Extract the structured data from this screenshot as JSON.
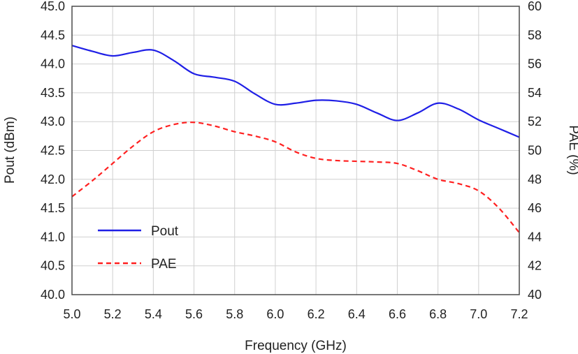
{
  "chart_data": {
    "type": "line",
    "x": [
      5.0,
      5.2,
      5.4,
      5.6,
      5.8,
      6.0,
      6.2,
      6.4,
      6.6,
      6.8,
      7.0,
      7.2
    ],
    "xlabel": "Frequency (GHz)",
    "ylabel": "Pout (dBm)",
    "y2label": "PAE (%)",
    "xlim": [
      5.0,
      7.2
    ],
    "ylim": [
      40.0,
      45.0
    ],
    "y2lim": [
      40,
      60
    ],
    "xticks": [
      "5.0",
      "5.2",
      "5.4",
      "5.6",
      "5.8",
      "6.0",
      "6.2",
      "6.4",
      "6.6",
      "6.8",
      "7.0",
      "7.2"
    ],
    "yticks": [
      "40.0",
      "40.5",
      "41.0",
      "41.5",
      "42.0",
      "42.5",
      "43.0",
      "43.5",
      "44.0",
      "44.5",
      "45.0"
    ],
    "y2ticks": [
      "40",
      "42",
      "44",
      "46",
      "48",
      "50",
      "52",
      "54",
      "56",
      "58",
      "60"
    ],
    "grid": true,
    "legend_position": "bottom-left",
    "series": [
      {
        "name": "Pout",
        "axis": "left",
        "color": "#1f1fe6",
        "dash": "solid",
        "x": [
          5.0,
          5.1,
          5.2,
          5.3,
          5.4,
          5.5,
          5.6,
          5.7,
          5.8,
          5.9,
          6.0,
          6.1,
          6.2,
          6.3,
          6.4,
          6.5,
          6.6,
          6.7,
          6.8,
          6.9,
          7.0,
          7.1,
          7.2
        ],
        "values": [
          44.32,
          44.22,
          44.14,
          44.2,
          44.24,
          44.06,
          43.83,
          43.77,
          43.7,
          43.48,
          43.3,
          43.32,
          43.37,
          43.36,
          43.3,
          43.15,
          43.02,
          43.15,
          43.32,
          43.22,
          43.03,
          42.88,
          42.73
        ]
      },
      {
        "name": "PAE",
        "axis": "right",
        "color": "#ff2020",
        "dash": "dashed",
        "x": [
          5.0,
          5.1,
          5.2,
          5.3,
          5.4,
          5.5,
          5.6,
          5.7,
          5.8,
          5.9,
          6.0,
          6.1,
          6.2,
          6.3,
          6.4,
          6.5,
          6.6,
          6.7,
          6.8,
          6.9,
          7.0,
          7.1,
          7.2
        ],
        "values": [
          46.8,
          47.9,
          49.1,
          50.3,
          51.3,
          51.8,
          51.95,
          51.7,
          51.3,
          51.0,
          50.6,
          49.9,
          49.45,
          49.3,
          49.25,
          49.2,
          49.1,
          48.6,
          48.0,
          47.7,
          47.2,
          46.0,
          44.3
        ]
      }
    ]
  }
}
